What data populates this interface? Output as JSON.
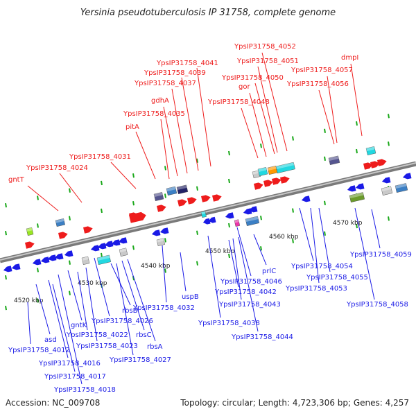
{
  "title": "Yersinia pseudotuberculosis IP 31758, complete genome",
  "accession": "Accession: NC_009708",
  "topology": "Topology: circular; Length: 4,723,306 bp; Genes: 4,257",
  "colors": {
    "forward": "#ee1c1c",
    "reverse": "#1a1ae6",
    "backbone": "#9a9a9a"
  },
  "axis_ticks": [
    "4520 kbp",
    "4530 kbp",
    "4540 kbp",
    "4550 kbp",
    "4560 kbp",
    "4570 kbp"
  ],
  "forward_labels": [
    "gntT",
    "YpsIP31758_4024",
    "YpsIP31758_4031",
    "pitA",
    "YpsIP31758_4035",
    "gdhA",
    "YpsIP31758_4037",
    "YpsIP31758_4039",
    "YpsIP31758_4041",
    "YpsIP31758_4048",
    "gor",
    "YpsIP31758_4050",
    "YpsIP31758_4051",
    "YpsIP31758_4052",
    "YpsIP31758_4056",
    "YpsIP31758_4057",
    "dmpI"
  ],
  "reverse_labels": [
    "YpsIP31758_4012",
    "asd",
    "YpsIP31758_4016",
    "YpsIP31758_4017",
    "YpsIP31758_4018",
    "gntK",
    "YpsIP31758_4022",
    "YpsIP31758_4023",
    "YpsIP31758_4026",
    "rbsB",
    "YpsIP31758_4027",
    "rbsC",
    "rbsA",
    "YpsIP31758_4032",
    "uspB",
    "YpsIP31758_4038",
    "YpsIP31758_4042",
    "YpsIP31758_4043",
    "YpsIP31758_4044",
    "YpsIP31758_4046",
    "prlC",
    "YpsIP31758_4054",
    "YpsIP31758_4055",
    "YpsIP31758_4053",
    "YpsIP31758_4059",
    "YpsIP31758_4058"
  ]
}
